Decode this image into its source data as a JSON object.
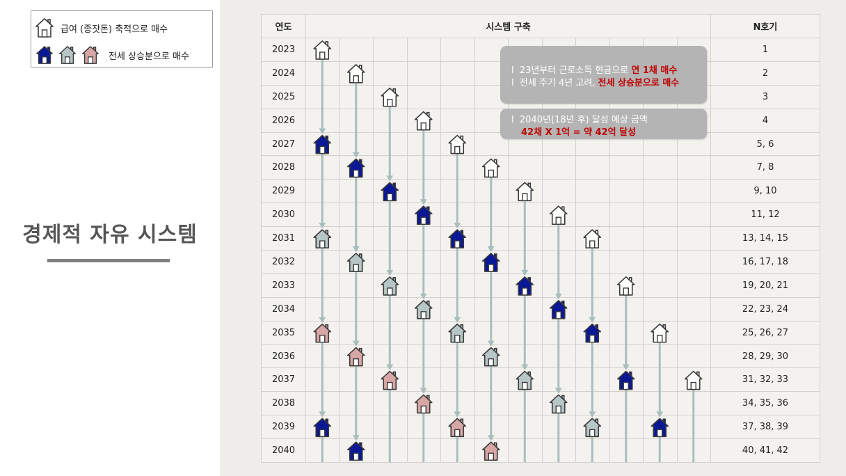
{
  "legend": {
    "item1_text": "급여 (종잣돈) 축적으로 매수",
    "item2_text": "전세 상승분으로 매수",
    "colors": {
      "outline": "#ffffff",
      "navy": "#0a1896",
      "gray": "#b7c6c6",
      "pink": "#d8a6a5"
    }
  },
  "title": "경제적 자유 시스템",
  "table": {
    "headers": {
      "year": "연도",
      "system": "시스템 구축",
      "n": "N호기"
    },
    "rows": [
      {
        "year": "2023",
        "n": "1"
      },
      {
        "year": "2024",
        "n": "2"
      },
      {
        "year": "2025",
        "n": "3"
      },
      {
        "year": "2026",
        "n": "4"
      },
      {
        "year": "2027",
        "n": "5, 6"
      },
      {
        "year": "2028",
        "n": "7, 8"
      },
      {
        "year": "2029",
        "n": "9, 10"
      },
      {
        "year": "2030",
        "n": "11, 12"
      },
      {
        "year": "2031",
        "n": "13, 14, 15"
      },
      {
        "year": "2032",
        "n": "16, 17, 18"
      },
      {
        "year": "2033",
        "n": "19, 20, 21"
      },
      {
        "year": "2034",
        "n": "22, 23, 24"
      },
      {
        "year": "2035",
        "n": "25, 26, 27"
      },
      {
        "year": "2036",
        "n": "28, 29, 30"
      },
      {
        "year": "2037",
        "n": "31, 32, 33"
      },
      {
        "year": "2038",
        "n": "34, 35, 36"
      },
      {
        "year": "2039",
        "n": "37, 38, 39"
      },
      {
        "year": "2040",
        "n": "40, 41, 42"
      }
    ],
    "columns": 12,
    "arrow_color": "#a8bebe"
  },
  "callout1": {
    "bullet": "l",
    "line1_pre": "23년부터 근로소득 현금으로 ",
    "line1_red": "연 1채 매수",
    "line2_pre": "전세 주기 4년 고려, ",
    "line2_red": "전세 상승분으로 매수"
  },
  "callout2": {
    "bullet": "l",
    "line1": "2040년(18년 후) 달성 예상 금액",
    "line2_red": "42채 X 1억 = 약 42억 달성"
  }
}
